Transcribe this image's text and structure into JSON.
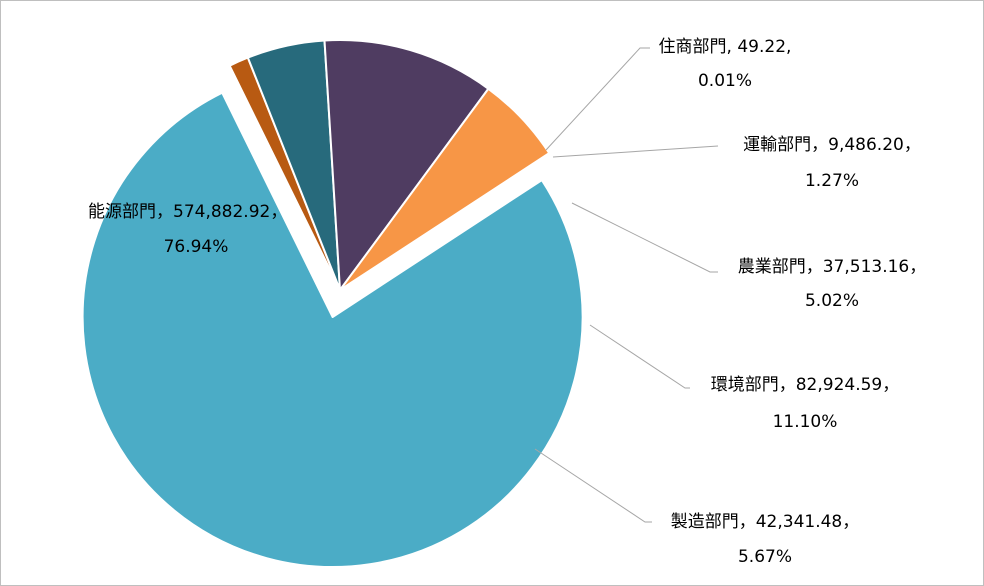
{
  "chart_data": {
    "type": "pie",
    "title": "",
    "legend": "none",
    "slices": [
      {
        "name": "能源部門",
        "value": 574882.92,
        "percent": "76.94%",
        "value_label": "574,882.92",
        "color": "#4bacc6",
        "label_line1": "能源部門，574,882.92，",
        "label_line2": "76.94%"
      },
      {
        "name": "住商部門",
        "value": 49.22,
        "percent": "0.01%",
        "value_label": "49.22",
        "color": "#b85a12",
        "label_line1": "住商部門, 49.22,",
        "label_line2": "0.01%"
      },
      {
        "name": "運輸部門",
        "value": 9486.2,
        "percent": "1.27%",
        "value_label": "9,486.20",
        "color": "#b85a12",
        "label_line1": "運輸部門，9,486.20，",
        "label_line2": "1.27%"
      },
      {
        "name": "農業部門",
        "value": 37513.16,
        "percent": "5.02%",
        "value_label": "37,513.16",
        "color": "#276a7c",
        "label_line1": "農業部門，37,513.16，",
        "label_line2": "5.02%"
      },
      {
        "name": "環境部門",
        "value": 82924.59,
        "percent": "11.10%",
        "value_label": "82,924.59",
        "color": "#4f3c61",
        "label_line1": "環境部門，82,924.59，",
        "label_line2": "11.10%"
      },
      {
        "name": "製造部門",
        "value": 42341.48,
        "percent": "5.67%",
        "value_label": "42,341.48",
        "color": "#f79646",
        "label_line1": "製造部門，42,341.48，",
        "label_line2": "5.67%"
      }
    ]
  }
}
